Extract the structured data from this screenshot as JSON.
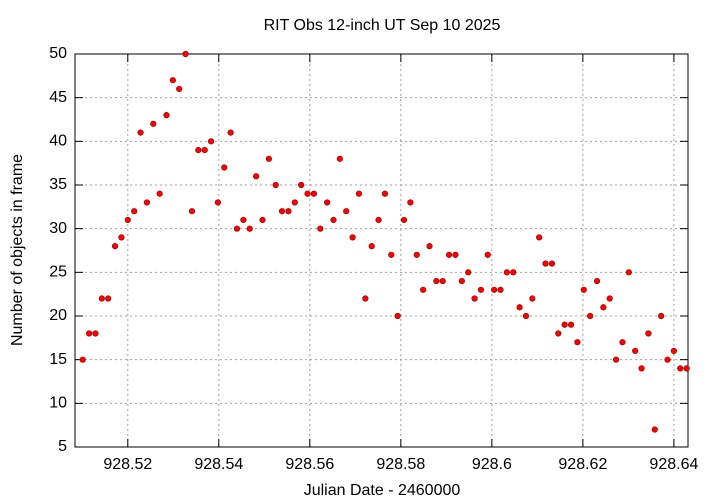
{
  "chart_data": {
    "type": "scatter",
    "title": "RIT Obs 12-inch UT Sep 10 2025",
    "x_label": "Julian Date - 2460000",
    "y_label": "Number of objects in frame",
    "color": "#ff0000",
    "grid": true,
    "xlim": [
      928.5084,
      928.6431
    ],
    "xticks": [
      928.52,
      928.54,
      928.56,
      928.58,
      928.6,
      928.62,
      928.64
    ],
    "ylim": [
      5,
      50
    ],
    "yticks": [
      5,
      10,
      15,
      20,
      25,
      30,
      35,
      40,
      45,
      50
    ],
    "x": [
      928.5101,
      928.5115,
      928.5129,
      928.5143,
      928.5157,
      928.5172,
      928.5186,
      928.52,
      928.5214,
      928.5228,
      928.5242,
      928.5256,
      928.527,
      928.5285,
      928.5299,
      928.5313,
      928.5327,
      928.5341,
      928.5355,
      928.5369,
      928.5383,
      928.5398,
      928.5412,
      928.5426,
      928.544,
      928.5454,
      928.5468,
      928.5482,
      928.5496,
      928.551,
      928.5525,
      928.5539,
      928.5553,
      928.5567,
      928.5581,
      928.5595,
      928.5609,
      928.5623,
      928.5638,
      928.5652,
      928.5666,
      928.568,
      928.5694,
      928.5708,
      928.5722,
      928.5736,
      928.5751,
      928.5765,
      928.5779,
      928.5793,
      928.5807,
      928.5821,
      928.5835,
      928.5849,
      928.5863,
      928.5878,
      928.5892,
      928.5906,
      928.592,
      928.5934,
      928.5948,
      928.5962,
      928.5976,
      928.5991,
      928.6005,
      928.6019,
      928.6033,
      928.6047,
      928.6061,
      928.6075,
      928.6089,
      928.6104,
      928.6118,
      928.6132,
      928.6146,
      928.616,
      928.6174,
      928.6188,
      928.6202,
      928.6216,
      928.6231,
      928.6245,
      928.6259,
      928.6273,
      928.6287,
      928.6301,
      928.6315,
      928.6329,
      928.6344,
      928.6358,
      928.6372,
      928.6386,
      928.64,
      928.6414,
      928.6428
    ],
    "values": [
      15,
      18,
      18,
      22,
      22,
      28,
      29,
      31,
      32,
      41,
      33,
      42,
      34,
      43,
      47,
      46,
      50,
      32,
      39,
      39,
      40,
      33,
      37,
      41,
      30,
      31,
      30,
      36,
      31,
      38,
      35,
      32,
      32,
      33,
      35,
      34,
      34,
      30,
      33,
      31,
      38,
      32,
      29,
      34,
      22,
      28,
      31,
      34,
      27,
      20,
      31,
      33,
      27,
      23,
      28,
      24,
      24,
      27,
      27,
      24,
      25,
      22,
      23,
      27,
      23,
      23,
      25,
      25,
      21,
      20,
      22,
      29,
      26,
      26,
      18,
      19,
      19,
      17,
      23,
      20,
      24,
      21,
      22,
      15,
      17,
      25,
      16,
      14,
      18,
      7,
      20,
      15,
      16,
      14,
      14
    ]
  }
}
